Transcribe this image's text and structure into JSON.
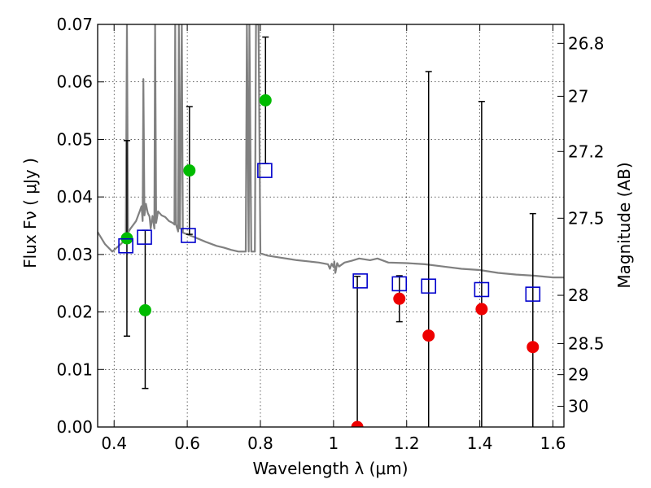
{
  "chart_data": {
    "type": "scatter",
    "xlabel": "Wavelength  λ (μm)",
    "ylabel": "Flux  Fν  ( μJy )",
    "y2label": "Magnitude (AB)",
    "xlim": [
      0.355,
      1.63
    ],
    "ylim": [
      0.0,
      0.07
    ],
    "grid": true,
    "x_ticks": [
      {
        "value": 0.4,
        "label": "0.4"
      },
      {
        "value": 0.6,
        "label": "0.6"
      },
      {
        "value": 0.8,
        "label": "0.8"
      },
      {
        "value": 1.0,
        "label": "1"
      },
      {
        "value": 1.2,
        "label": "1.2"
      },
      {
        "value": 1.4,
        "label": "1.4"
      },
      {
        "value": 1.6,
        "label": "1.6"
      }
    ],
    "y_ticks": [
      {
        "value": 0.0,
        "label": "0.00"
      },
      {
        "value": 0.01,
        "label": "0.01"
      },
      {
        "value": 0.02,
        "label": "0.02"
      },
      {
        "value": 0.03,
        "label": "0.03"
      },
      {
        "value": 0.04,
        "label": "0.04"
      },
      {
        "value": 0.05,
        "label": "0.05"
      },
      {
        "value": 0.06,
        "label": "0.06"
      },
      {
        "value": 0.07,
        "label": "0.07"
      }
    ],
    "y2_ticks": [
      {
        "label": "26.8",
        "flux": 0.0667
      },
      {
        "label": "27",
        "flux": 0.0575
      },
      {
        "label": "27.2",
        "flux": 0.0479
      },
      {
        "label": "27.5",
        "flux": 0.0363
      },
      {
        "label": "28",
        "flux": 0.0229
      },
      {
        "label": "28.5",
        "flux": 0.0145
      },
      {
        "label": "29",
        "flux": 0.0091
      },
      {
        "label": "30",
        "flux": 0.0036
      }
    ],
    "series": [
      {
        "marker": "circle",
        "color": "#00bb00",
        "points": [
          {
            "x": 0.435,
            "y": 0.0328,
            "ylo": 0.0158,
            "yhi": 0.0498
          },
          {
            "x": 0.485,
            "y": 0.0203,
            "ylo": 0.0067,
            "yhi": 0.0342
          },
          {
            "x": 0.606,
            "y": 0.0446,
            "ylo": 0.0335,
            "yhi": 0.0557
          },
          {
            "x": 0.814,
            "y": 0.0568,
            "ylo": 0.0458,
            "yhi": 0.0678
          }
        ]
      },
      {
        "marker": "circle",
        "color": "#ee0000",
        "points": [
          {
            "x": 1.065,
            "y": 0.0,
            "ylo": 0.0,
            "yhi": 0.0262
          },
          {
            "x": 1.18,
            "y": 0.0223,
            "ylo": 0.0183,
            "yhi": 0.0263
          },
          {
            "x": 1.26,
            "y": 0.0159,
            "ylo": 0.0,
            "yhi": 0.0618
          },
          {
            "x": 1.405,
            "y": 0.0205,
            "ylo": 0.0,
            "yhi": 0.0566
          },
          {
            "x": 1.545,
            "y": 0.0139,
            "ylo": 0.0,
            "yhi": 0.0371
          }
        ]
      },
      {
        "marker": "square-open",
        "color": "#0000cc",
        "points": [
          {
            "x": 0.432,
            "y": 0.0315
          },
          {
            "x": 0.483,
            "y": 0.033
          },
          {
            "x": 0.603,
            "y": 0.0333
          },
          {
            "x": 0.812,
            "y": 0.0446
          },
          {
            "x": 1.073,
            "y": 0.0254
          },
          {
            "x": 1.18,
            "y": 0.0249
          },
          {
            "x": 1.26,
            "y": 0.0245
          },
          {
            "x": 1.405,
            "y": 0.0239
          },
          {
            "x": 1.545,
            "y": 0.0231
          }
        ]
      }
    ],
    "model_spectrum": {
      "color": "#808080",
      "points": [
        [
          0.355,
          0.0339
        ],
        [
          0.375,
          0.0318
        ],
        [
          0.395,
          0.0305
        ],
        [
          0.42,
          0.0319
        ],
        [
          0.432,
          0.0328
        ],
        [
          0.435,
          0.07
        ],
        [
          0.438,
          0.0338
        ],
        [
          0.445,
          0.0345
        ],
        [
          0.46,
          0.0358
        ],
        [
          0.47,
          0.0375
        ],
        [
          0.475,
          0.0384
        ],
        [
          0.478,
          0.0358
        ],
        [
          0.48,
          0.0605
        ],
        [
          0.483,
          0.0368
        ],
        [
          0.487,
          0.0388
        ],
        [
          0.492,
          0.0372
        ],
        [
          0.497,
          0.0366
        ],
        [
          0.5,
          0.0345
        ],
        [
          0.505,
          0.0367
        ],
        [
          0.51,
          0.0345
        ],
        [
          0.512,
          0.07
        ],
        [
          0.515,
          0.0355
        ],
        [
          0.52,
          0.0375
        ],
        [
          0.53,
          0.0368
        ],
        [
          0.54,
          0.0365
        ],
        [
          0.55,
          0.0358
        ],
        [
          0.56,
          0.0355
        ],
        [
          0.565,
          0.0352
        ],
        [
          0.567,
          0.07
        ],
        [
          0.569,
          0.0353
        ],
        [
          0.575,
          0.034
        ],
        [
          0.577,
          0.07
        ],
        [
          0.58,
          0.0345
        ],
        [
          0.585,
          0.07
        ],
        [
          0.588,
          0.0338
        ],
        [
          0.6,
          0.0335
        ],
        [
          0.62,
          0.033
        ],
        [
          0.65,
          0.0322
        ],
        [
          0.68,
          0.0315
        ],
        [
          0.7,
          0.0312
        ],
        [
          0.72,
          0.0308
        ],
        [
          0.74,
          0.0305
        ],
        [
          0.76,
          0.0305
        ],
        [
          0.763,
          0.07
        ],
        [
          0.768,
          0.0305
        ],
        [
          0.77,
          0.07
        ],
        [
          0.775,
          0.0305
        ],
        [
          0.785,
          0.0305
        ],
        [
          0.788,
          0.07
        ],
        [
          0.795,
          0.07
        ],
        [
          0.8,
          0.0302
        ],
        [
          0.82,
          0.0298
        ],
        [
          0.85,
          0.0295
        ],
        [
          0.88,
          0.0292
        ],
        [
          0.9,
          0.029
        ],
        [
          0.93,
          0.0288
        ],
        [
          0.96,
          0.0286
        ],
        [
          0.985,
          0.0283
        ],
        [
          0.99,
          0.0275
        ],
        [
          0.995,
          0.0284
        ],
        [
          1.0,
          0.0278
        ],
        [
          1.002,
          0.0288
        ],
        [
          1.005,
          0.0268
        ],
        [
          1.01,
          0.0285
        ],
        [
          1.015,
          0.0279
        ],
        [
          1.03,
          0.0286
        ],
        [
          1.05,
          0.0289
        ],
        [
          1.07,
          0.0293
        ],
        [
          1.1,
          0.029
        ],
        [
          1.12,
          0.0293
        ],
        [
          1.15,
          0.0286
        ],
        [
          1.2,
          0.0285
        ],
        [
          1.25,
          0.0283
        ],
        [
          1.3,
          0.0279
        ],
        [
          1.35,
          0.0275
        ],
        [
          1.4,
          0.0273
        ],
        [
          1.45,
          0.0268
        ],
        [
          1.5,
          0.0265
        ],
        [
          1.55,
          0.0263
        ],
        [
          1.6,
          0.026
        ],
        [
          1.63,
          0.026
        ]
      ]
    }
  }
}
